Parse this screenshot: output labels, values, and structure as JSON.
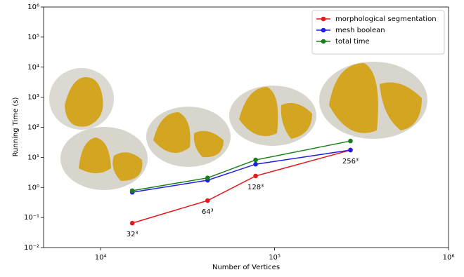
{
  "chart_data": {
    "type": "line",
    "xlabel": "Number of Vertices",
    "ylabel": "Running Time (s)",
    "x": [
      15200,
      41200,
      77800,
      273000
    ],
    "series": [
      {
        "name": "morphological segmentation",
        "color": "#e31a1c",
        "values": [
          0.065,
          0.365,
          2.4,
          17.4
        ]
      },
      {
        "name": "mesh boolean",
        "color": "#1f1fe0",
        "values": [
          0.69,
          1.73,
          5.9,
          17.5
        ]
      },
      {
        "name": "total time",
        "color": "#1a7f1a",
        "values": [
          0.78,
          2.07,
          8.2,
          35
        ]
      }
    ],
    "annotations": [
      "32³",
      "64³",
      "128³",
      "256³"
    ],
    "xscale": "log",
    "yscale": "log",
    "xlim": [
      4700,
      1000000
    ],
    "ylim": [
      0.01,
      1000000
    ],
    "xticks": [
      {
        "value": 10000,
        "label": "10⁴"
      },
      {
        "value": 100000,
        "label": "10⁵"
      },
      {
        "value": 1000000,
        "label": "10⁶"
      }
    ],
    "yticks": [
      {
        "value": 0.01,
        "label": "10⁻²"
      },
      {
        "value": 0.1,
        "label": "10⁻¹"
      },
      {
        "value": 1,
        "label": "10⁰"
      },
      {
        "value": 10,
        "label": "10¹"
      },
      {
        "value": 100,
        "label": "10²"
      },
      {
        "value": 1000,
        "label": "10³"
      },
      {
        "value": 10000,
        "label": "10⁴"
      },
      {
        "value": 100000,
        "label": "10⁵"
      },
      {
        "value": 1000000,
        "label": "10⁶"
      }
    ],
    "legend": "upper right",
    "grid": false
  }
}
